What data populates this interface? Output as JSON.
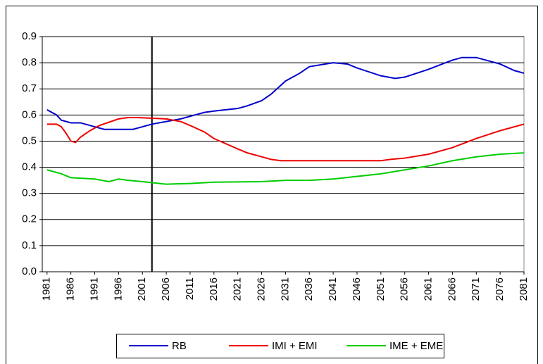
{
  "chart_data": {
    "type": "line",
    "xlim": [
      1980,
      2081
    ],
    "xticks": [
      1981,
      1986,
      1991,
      1996,
      2001,
      2006,
      2011,
      2016,
      2021,
      2026,
      2031,
      2036,
      2041,
      2046,
      2051,
      2056,
      2061,
      2066,
      2071,
      2076,
      2081
    ],
    "ylim": [
      0,
      0.9
    ],
    "yticks": [
      {
        "value": 0,
        "label": "0.0"
      },
      0.1,
      0.2,
      0.3,
      0.4,
      0.5,
      0.6,
      0.7,
      0.8,
      0.9
    ],
    "grid": true,
    "vline": 2003,
    "legend": "bottom",
    "series": [
      {
        "name": "RB",
        "color": "#0000cc",
        "x": [
          1981,
          1983,
          1984,
          1986,
          1988,
          1991,
          1993,
          1999,
          2001,
          2003,
          2006,
          2009,
          2011,
          2014,
          2016,
          2021,
          2023,
          2026,
          2028,
          2031,
          2034,
          2036,
          2041,
          2044,
          2046,
          2051,
          2054,
          2056,
          2061,
          2066,
          2068,
          2071,
          2076,
          2079,
          2081
        ],
        "values": [
          0.62,
          0.6,
          0.58,
          0.57,
          0.57,
          0.555,
          0.545,
          0.545,
          0.555,
          0.565,
          0.575,
          0.585,
          0.595,
          0.61,
          0.615,
          0.625,
          0.635,
          0.655,
          0.68,
          0.73,
          0.76,
          0.785,
          0.8,
          0.795,
          0.78,
          0.75,
          0.74,
          0.745,
          0.775,
          0.81,
          0.82,
          0.82,
          0.795,
          0.77,
          0.76
        ]
      },
      {
        "name": "IMI + EMI",
        "color": "#ee0000",
        "x": [
          1981,
          1983,
          1984,
          1985,
          1986,
          1987,
          1988,
          1990,
          1992,
          1996,
          1998,
          2000,
          2006,
          2009,
          2011,
          2014,
          2016,
          2021,
          2023,
          2026,
          2028,
          2030,
          2051,
          2053,
          2056,
          2061,
          2066,
          2071,
          2076,
          2081
        ],
        "values": [
          0.565,
          0.565,
          0.555,
          0.53,
          0.5,
          0.495,
          0.515,
          0.54,
          0.56,
          0.585,
          0.59,
          0.59,
          0.585,
          0.575,
          0.56,
          0.535,
          0.51,
          0.47,
          0.455,
          0.44,
          0.43,
          0.425,
          0.425,
          0.43,
          0.435,
          0.45,
          0.475,
          0.51,
          0.54,
          0.565
        ]
      },
      {
        "name": "IME + EME",
        "color": "#00cc00",
        "x": [
          1981,
          1984,
          1986,
          1991,
          1994,
          1996,
          1998,
          2001,
          2006,
          2011,
          2016,
          2026,
          2031,
          2036,
          2041,
          2046,
          2051,
          2056,
          2061,
          2066,
          2071,
          2076,
          2081
        ],
        "values": [
          0.39,
          0.375,
          0.36,
          0.355,
          0.345,
          0.355,
          0.35,
          0.345,
          0.335,
          0.338,
          0.343,
          0.345,
          0.35,
          0.35,
          0.355,
          0.365,
          0.375,
          0.39,
          0.405,
          0.425,
          0.44,
          0.45,
          0.455
        ]
      }
    ]
  }
}
